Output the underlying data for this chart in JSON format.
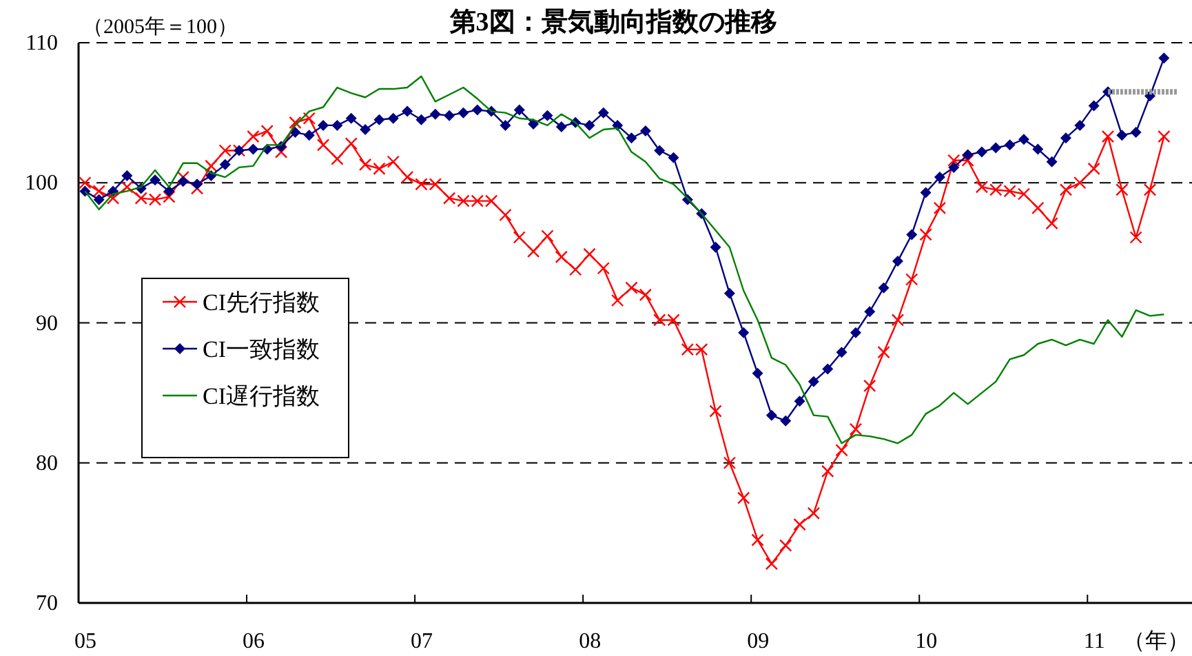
{
  "chart_data": {
    "type": "line",
    "title": "第3図：景気動向指数の推移",
    "xlabel": "（年）",
    "annotations": [
      "（2005年＝100）"
    ],
    "x": [
      "2005-01-15",
      "2005-02-15",
      "2005-03-15",
      "2005-04-15",
      "2005-05-15",
      "2005-06-15",
      "2005-07-15",
      "2005-08-15",
      "2005-09-15",
      "2005-10-15",
      "2005-11-15",
      "2005-12-15",
      "2006-01-15",
      "2006-02-15",
      "2006-03-15",
      "2006-04-15",
      "2006-05-15",
      "2006-06-15",
      "2006-07-15",
      "2006-08-15",
      "2006-09-15",
      "2006-10-15",
      "2006-11-15",
      "2006-12-15",
      "2007-01-15",
      "2007-02-15",
      "2007-03-15",
      "2007-04-15",
      "2007-05-15",
      "2007-06-15",
      "2007-07-15",
      "2007-08-15",
      "2007-09-15",
      "2007-10-15",
      "2007-11-15",
      "2007-12-15",
      "2008-01-15",
      "2008-02-15",
      "2008-03-15",
      "2008-04-15",
      "2008-05-15",
      "2008-06-15",
      "2008-07-15",
      "2008-08-15",
      "2008-09-15",
      "2008-10-15",
      "2008-11-15",
      "2008-12-15",
      "2009-01-15",
      "2009-02-15",
      "2009-03-15",
      "2009-04-15",
      "2009-05-15",
      "2009-06-15",
      "2009-07-15",
      "2009-08-15",
      "2009-09-15",
      "2009-10-15",
      "2009-11-15",
      "2009-12-15",
      "2010-01-15",
      "2010-02-15",
      "2010-03-15",
      "2010-04-15",
      "2010-05-15",
      "2010-06-15",
      "2010-07-15",
      "2010-08-15",
      "2010-09-15",
      "2010-10-15",
      "2010-11-15",
      "2010-12-15",
      "2011-01-15",
      "2011-02-15",
      "2011-03-15",
      "2011-04-15",
      "2011-05-15",
      "2011-06-15"
    ],
    "series": [
      {
        "name": "CI先行指数",
        "color": "#ff0000",
        "marker": "cross",
        "values": [
          100.0,
          99.4,
          98.9,
          99.7,
          98.9,
          98.8,
          99.0,
          100.4,
          99.6,
          101.2,
          102.3,
          102.3,
          103.3,
          103.7,
          102.2,
          104.3,
          104.6,
          102.7,
          101.7,
          102.8,
          101.3,
          101.0,
          101.5,
          100.4,
          99.9,
          99.9,
          98.9,
          98.7,
          98.7,
          98.7,
          97.7,
          96.1,
          95.1,
          96.2,
          94.7,
          93.8,
          94.9,
          93.9,
          91.6,
          92.5,
          92.0,
          90.2,
          90.2,
          88.1,
          88.1,
          83.7,
          80.0,
          77.5,
          74.5,
          72.8,
          74.1,
          75.6,
          76.4,
          79.4,
          80.9,
          82.4,
          85.5,
          87.9,
          90.2,
          93.1,
          96.3,
          98.2,
          101.6,
          101.6,
          99.7,
          99.5,
          99.4,
          99.2,
          98.2,
          97.1,
          99.5,
          100.0,
          101.0,
          103.3,
          99.5,
          96.1,
          99.5,
          103.3
        ]
      },
      {
        "name": "CI一致指数",
        "color": "#000080",
        "marker": "diamond",
        "values": [
          99.4,
          98.8,
          99.4,
          100.5,
          99.6,
          100.2,
          99.4,
          100.1,
          99.9,
          100.5,
          101.3,
          102.3,
          102.4,
          102.4,
          102.6,
          103.6,
          103.4,
          104.1,
          104.1,
          104.6,
          103.8,
          104.5,
          104.6,
          105.1,
          104.5,
          104.9,
          104.8,
          105.0,
          105.2,
          105.1,
          104.1,
          105.2,
          104.2,
          104.8,
          104.0,
          104.3,
          104.1,
          105.0,
          104.1,
          103.2,
          103.7,
          102.3,
          101.8,
          98.8,
          97.8,
          95.4,
          92.1,
          89.3,
          86.4,
          83.4,
          83.0,
          84.4,
          85.8,
          86.7,
          87.9,
          89.3,
          90.8,
          92.5,
          94.4,
          96.3,
          99.3,
          100.4,
          101.1,
          102.0,
          102.2,
          102.5,
          102.7,
          103.1,
          102.4,
          101.5,
          103.2,
          104.1,
          105.5,
          106.5,
          103.4,
          103.6,
          106.2,
          108.9
        ]
      },
      {
        "name": "CI遅行指数",
        "color": "#008000",
        "marker": "none",
        "values": [
          99.4,
          98.1,
          99.2,
          99.4,
          99.7,
          100.9,
          99.7,
          101.4,
          101.4,
          100.7,
          100.4,
          101.1,
          101.2,
          102.7,
          102.7,
          104.1,
          105.1,
          105.4,
          106.8,
          106.4,
          106.1,
          106.7,
          106.7,
          106.8,
          107.6,
          105.8,
          106.3,
          106.8,
          106.0,
          105.1,
          105.0,
          104.6,
          104.5,
          104.1,
          104.9,
          104.3,
          103.2,
          103.8,
          103.9,
          102.2,
          101.5,
          100.3,
          99.9,
          98.9,
          97.8,
          96.6,
          95.4,
          92.3,
          90.2,
          87.5,
          87.0,
          85.6,
          83.4,
          83.3,
          81.4,
          82.0,
          81.9,
          81.7,
          81.4,
          82.0,
          83.5,
          84.1,
          85.0,
          84.2,
          85.0,
          85.8,
          87.4,
          87.7,
          88.5,
          88.8,
          88.4,
          88.8,
          88.5,
          90.2,
          89.0,
          90.9,
          90.5,
          90.6
        ]
      },
      {
        "color": "#999999",
        "marker": "none",
        "line_style": "dotted",
        "x": [
          "2011-02-15",
          "2011-07-15"
        ],
        "values": [
          106.5,
          106.5
        ]
      }
    ],
    "xlim": [
      "2005-01-01",
      "2011-08-15"
    ],
    "xticks": [
      {
        "value": "2005-01-01",
        "label": "05"
      },
      {
        "value": "2006-01-01",
        "label": "06"
      },
      {
        "value": "2007-01-01",
        "label": "07"
      },
      {
        "value": "2008-01-01",
        "label": "08"
      },
      {
        "value": "2009-01-01",
        "label": "09"
      },
      {
        "value": "2010-01-01",
        "label": "10"
      },
      {
        "value": "2011-01-01",
        "label": "11"
      }
    ],
    "ylim": [
      70,
      110
    ],
    "yticks": [
      70,
      80,
      90,
      100,
      110
    ],
    "grid": "y",
    "legend": "left",
    "line_style": "solid"
  }
}
